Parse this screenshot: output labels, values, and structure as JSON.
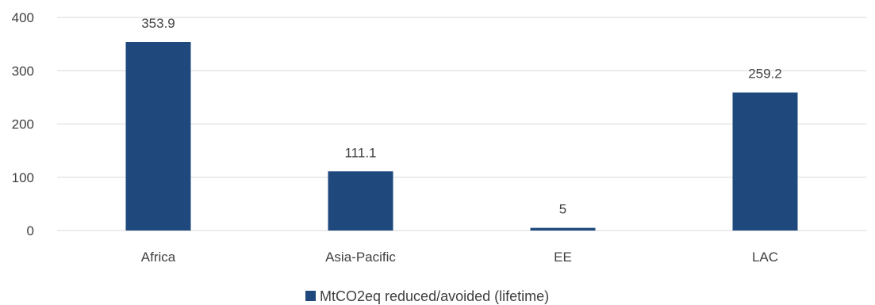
{
  "chart_data": {
    "type": "bar",
    "categories": [
      "Africa",
      "Asia-Pacific",
      "EE",
      "LAC"
    ],
    "series": [
      {
        "name": "MtCO2eq reduced/avoided (lifetime)",
        "values": [
          353.9,
          111.1,
          5,
          259.2
        ],
        "color": "#1F497D"
      }
    ],
    "data_labels": [
      "353.9",
      "111.1",
      "5",
      "259.2"
    ],
    "yticks": [
      0,
      100,
      200,
      300,
      400
    ],
    "ylim": [
      0,
      400
    ],
    "grid": true,
    "legend_position": "bottom"
  },
  "colors": {
    "bar": "#1F497D",
    "grid": "#D9D9D9",
    "text": "#404040"
  }
}
